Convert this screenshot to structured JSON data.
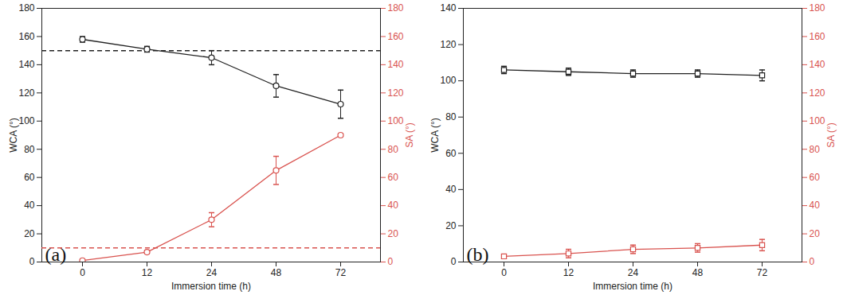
{
  "chart_data": [
    {
      "type": "line",
      "title": "(a)",
      "xlabel": "Immersion time (h)",
      "ylabel": "WCA (°)",
      "y2label": "SA (°)",
      "categories": [
        "0",
        "12",
        "24",
        "48",
        "72"
      ],
      "ylim": [
        0,
        180
      ],
      "yticks": [
        0,
        20,
        40,
        60,
        80,
        100,
        120,
        140,
        160,
        180
      ],
      "y2lim": [
        0,
        180
      ],
      "y2ticks": [
        0,
        20,
        40,
        60,
        80,
        100,
        120,
        140,
        160,
        180
      ],
      "series": [
        {
          "name": "WCA",
          "color": "#222222",
          "marker": "circle",
          "values": [
            158,
            151,
            145,
            125,
            112
          ],
          "error": [
            2,
            2,
            5,
            8,
            10
          ]
        },
        {
          "name": "SA",
          "color": "#d9534f",
          "marker": "circle",
          "axis": "y2",
          "values": [
            1,
            7,
            30,
            65,
            90
          ],
          "error": [
            1,
            1,
            5,
            10,
            1
          ]
        }
      ],
      "reference_lines": [
        {
          "value": 150,
          "color": "#222222",
          "line_style": "dashed"
        },
        {
          "value": 10,
          "color": "#d9534f",
          "line_style": "dashed",
          "axis": "y2"
        }
      ]
    },
    {
      "type": "line",
      "title": "(b)",
      "xlabel": "Immersion time (h)",
      "ylabel": "WCA (°)",
      "y2label": "SA (°)",
      "categories": [
        "0",
        "12",
        "24",
        "48",
        "72"
      ],
      "ylim": [
        0,
        140
      ],
      "yticks": [
        0,
        20,
        40,
        60,
        80,
        100,
        120,
        140
      ],
      "y2lim": [
        0,
        180
      ],
      "y2ticks": [
        0,
        20,
        40,
        60,
        80,
        100,
        120,
        140,
        160,
        180
      ],
      "series": [
        {
          "name": "WCA",
          "color": "#222222",
          "marker": "square",
          "values": [
            106,
            105,
            104,
            104,
            103
          ],
          "error": [
            2,
            2,
            2,
            2,
            3
          ]
        },
        {
          "name": "SA",
          "color": "#d9534f",
          "marker": "square",
          "axis": "y2",
          "values": [
            4,
            6,
            9,
            10,
            12
          ],
          "error": [
            1,
            3,
            3,
            3,
            4
          ]
        }
      ]
    }
  ]
}
